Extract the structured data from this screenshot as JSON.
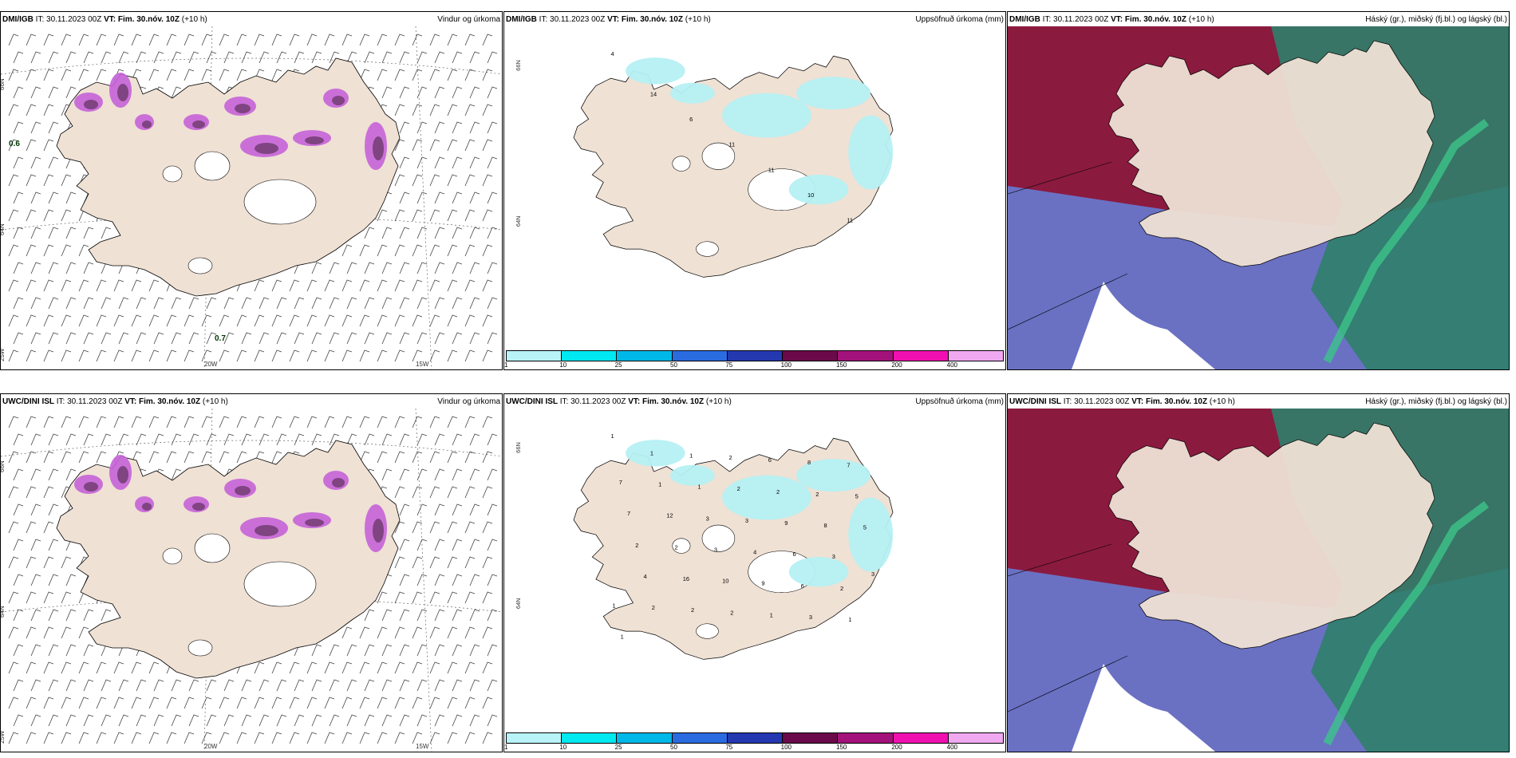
{
  "colors": {
    "land": "#efe1d4",
    "precip_magenta": "#c563d8",
    "precip_dark": "#6b3a6b",
    "cyan": "#b5f0f3",
    "cloud_high": "#8b1a3f",
    "cloud_mid": "#2f7f6a",
    "cloud_low": "#5058b8",
    "cloud_green": "#3cc48a"
  },
  "panels": [
    {
      "id": "p1",
      "source": "DMI/IGB",
      "it_label": "IT:",
      "it_value": "30.11.2023 00Z",
      "vt_label": "VT: Fim. 30.nóv. 10Z",
      "lead": "(+10 h)",
      "title": "Vindur og úrkoma",
      "type": "wind",
      "labels": {
        "lat66": "66N",
        "lat64": "64N",
        "lon25": "25W",
        "lon20": "20W",
        "lon15": "15W",
        "val_a": "0.6",
        "val_b": "0.7"
      }
    },
    {
      "id": "p2",
      "source": "DMI/IGB",
      "it_label": "IT:",
      "it_value": "30.11.2023 00Z",
      "vt_label": "VT: Fim. 30.nóv. 10Z",
      "lead": "(+10 h)",
      "title": "Uppsöfnuð úrkoma (mm)",
      "type": "accum",
      "labels": {
        "lat66": "66N",
        "lat64": "64N"
      },
      "values": [
        "4",
        "14",
        "6",
        "11",
        "11",
        "10",
        "11"
      ]
    },
    {
      "id": "p3",
      "source": "DMI/IGB",
      "it_label": "IT:",
      "it_value": "30.11.2023 00Z",
      "vt_label": "VT: Fim. 30.nóv. 10Z",
      "lead": "(+10 h)",
      "title": "Háský (gr.), miðský (fj.bl.) og lágský (bl.)",
      "type": "cloud"
    },
    {
      "id": "p4",
      "source": "UWC/DINI ISL",
      "it_label": "IT:",
      "it_value": "30.11.2023 00Z",
      "vt_label": "VT: Fim. 30.nóv. 10Z",
      "lead": "(+10 h)",
      "title": "Vindur og úrkoma",
      "type": "wind",
      "labels": {
        "lat66": "66N",
        "lat64": "64N",
        "lon25": "25W",
        "lon20": "20W",
        "lon15": "15W",
        "val_a": "",
        "val_b": ""
      }
    },
    {
      "id": "p5",
      "source": "UWC/DINI ISL",
      "it_label": "IT:",
      "it_value": "30.11.2023 00Z",
      "vt_label": "VT: Fim. 30.nóv. 10Z",
      "lead": "(+10 h)",
      "title": "Uppsöfnuð úrkoma (mm)",
      "type": "accum",
      "labels": {
        "lat66": "66N",
        "lat64": "64N"
      },
      "values": [
        "1",
        "1",
        "1",
        "2",
        "6",
        "8",
        "7",
        "7",
        "1",
        "1",
        "2",
        "2",
        "2",
        "5",
        "7",
        "12",
        "3",
        "3",
        "9",
        "8",
        "5",
        "2",
        "2",
        "3",
        "4",
        "6",
        "3",
        "3",
        "4",
        "16",
        "10",
        "9",
        "6",
        "2",
        "1",
        "2",
        "2",
        "2",
        "1",
        "3",
        "1",
        "1"
      ]
    },
    {
      "id": "p6",
      "source": "UWC/DINI ISL",
      "it_label": "IT:",
      "it_value": "30.11.2023 00Z",
      "vt_label": "VT: Fim. 30.nóv. 10Z",
      "lead": "(+10 h)",
      "title": "Háský (gr.), miðský (fj.bl.) og lágský (bl.)",
      "type": "cloud"
    }
  ],
  "colorbar": {
    "colors": [
      "#b8f4f7",
      "#00e8f0",
      "#00b8e8",
      "#2a6be0",
      "#2438b0",
      "#6a0a4a",
      "#a3127a",
      "#f010b0",
      "#f0a8f0"
    ],
    "ticks": [
      "1",
      "10",
      "25",
      "50",
      "75",
      "100",
      "150",
      "200",
      "400"
    ]
  }
}
